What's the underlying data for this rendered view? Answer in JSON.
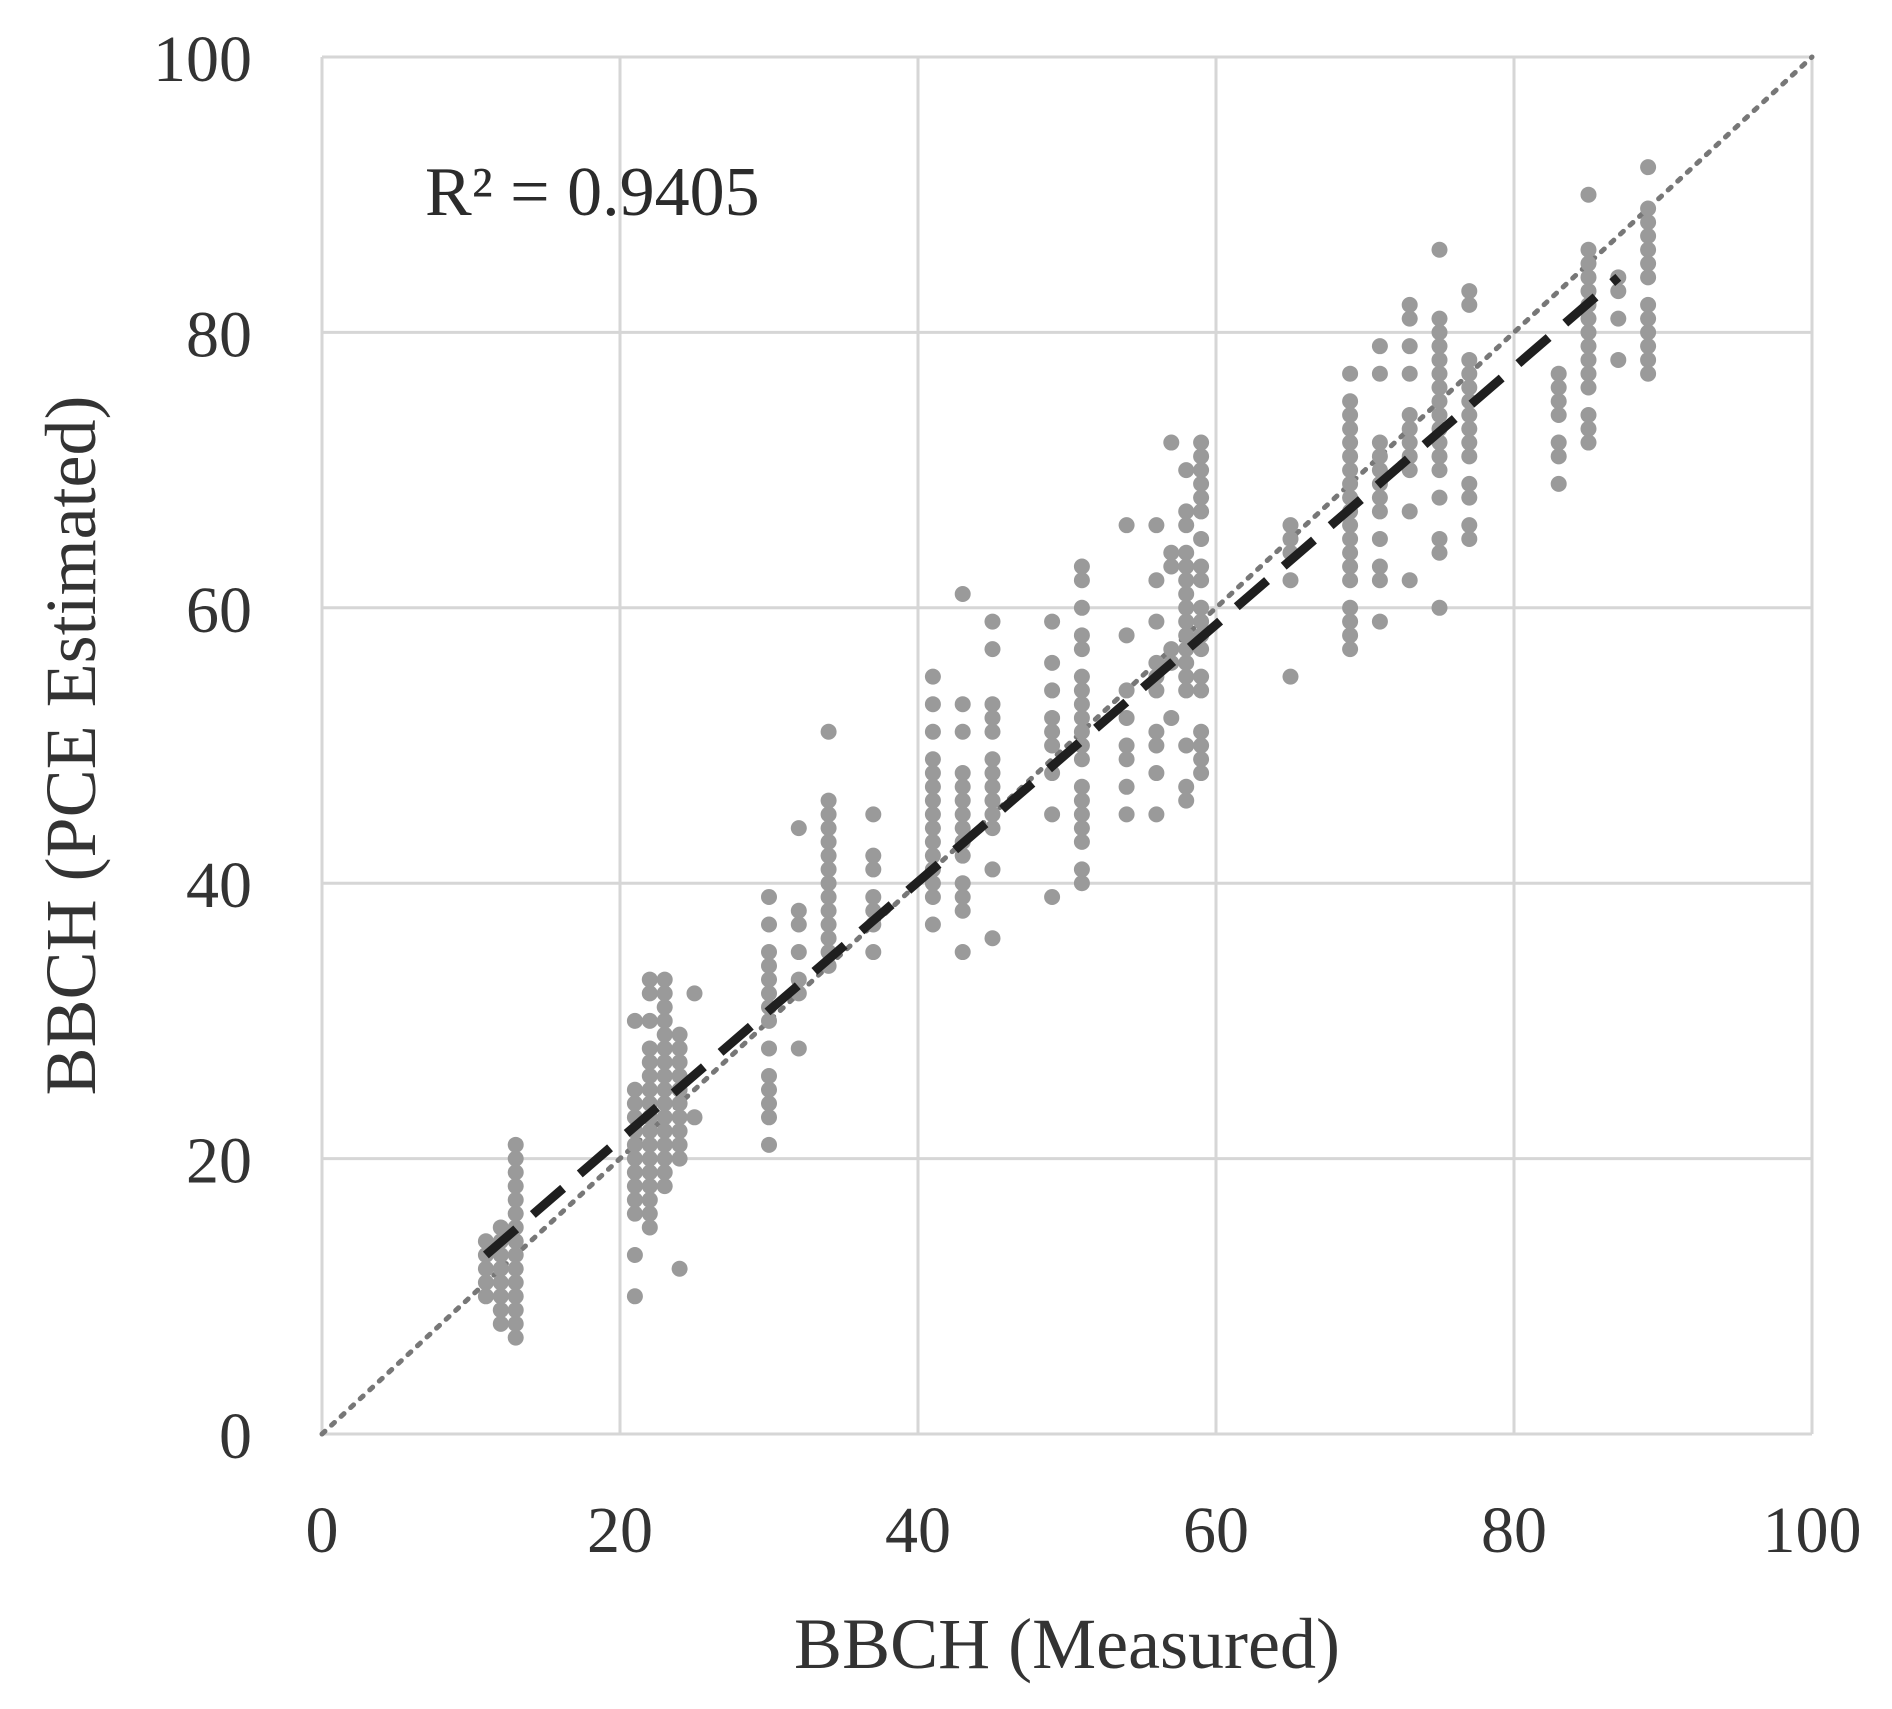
{
  "chart_data": {
    "type": "scatter",
    "xlabel": "BBCH (Measured)",
    "ylabel": "BBCH (PCE Estimated)",
    "xlim": [
      0,
      100
    ],
    "ylim": [
      0,
      100
    ],
    "xticks": [
      "0",
      "20",
      "40",
      "60",
      "80",
      "100"
    ],
    "yticks": [
      "0",
      "20",
      "40",
      "60",
      "80",
      "100"
    ],
    "grid": true,
    "annotation": "R² = 0.9405",
    "trendline": {
      "x": [
        11,
        87
      ],
      "y": [
        13,
        84
      ],
      "style": "dashed"
    },
    "reference_line": {
      "x": [
        0,
        100
      ],
      "y": [
        0,
        100
      ],
      "style": "dotted"
    },
    "columns": [
      {
        "x": 11,
        "y": [
          10,
          11,
          12,
          13,
          14
        ]
      },
      {
        "x": 12,
        "y": [
          8,
          9,
          10,
          11,
          12,
          13,
          14,
          15
        ]
      },
      {
        "x": 13,
        "y": [
          7,
          8,
          9,
          10,
          11,
          12,
          13,
          14,
          15,
          16,
          17,
          18,
          19,
          20,
          21
        ]
      },
      {
        "x": 21,
        "y": [
          10,
          13,
          16,
          17,
          18,
          19,
          20,
          21,
          22,
          23,
          24,
          25,
          30
        ]
      },
      {
        "x": 22,
        "y": [
          15,
          16,
          17,
          18,
          19,
          20,
          21,
          22,
          23,
          24,
          25,
          26,
          27,
          28,
          30,
          32,
          33
        ]
      },
      {
        "x": 23,
        "y": [
          18,
          19,
          20,
          21,
          22,
          23,
          24,
          25,
          26,
          27,
          28,
          29,
          30,
          31,
          32,
          33
        ]
      },
      {
        "x": 24,
        "y": [
          12,
          20,
          21,
          22,
          23,
          24,
          25,
          26,
          27,
          28,
          29
        ]
      },
      {
        "x": 25,
        "y": [
          23,
          32
        ]
      },
      {
        "x": 30,
        "y": [
          21,
          23,
          24,
          25,
          26,
          28,
          30,
          31,
          32,
          33,
          34,
          35,
          37,
          39
        ]
      },
      {
        "x": 32,
        "y": [
          28,
          32,
          33,
          35,
          37,
          38,
          44
        ]
      },
      {
        "x": 34,
        "y": [
          34,
          35,
          36,
          37,
          38,
          39,
          40,
          41,
          42,
          43,
          44,
          45,
          46,
          51
        ]
      },
      {
        "x": 37,
        "y": [
          35,
          37,
          38,
          39,
          41,
          42,
          45
        ]
      },
      {
        "x": 41,
        "y": [
          37,
          39,
          40,
          41,
          42,
          43,
          44,
          45,
          46,
          47,
          48,
          49,
          51,
          53,
          55
        ]
      },
      {
        "x": 43,
        "y": [
          35,
          38,
          39,
          40,
          42,
          43,
          44,
          45,
          46,
          47,
          48,
          51,
          53,
          61
        ]
      },
      {
        "x": 45,
        "y": [
          36,
          41,
          44,
          45,
          46,
          47,
          48,
          49,
          51,
          52,
          53,
          57,
          59
        ]
      },
      {
        "x": 49,
        "y": [
          39,
          45,
          48,
          50,
          51,
          52,
          54,
          56,
          59
        ]
      },
      {
        "x": 51,
        "y": [
          40,
          41,
          43,
          44,
          45,
          46,
          47,
          49,
          50,
          51,
          52,
          53,
          54,
          55,
          57,
          58,
          60,
          62,
          63
        ]
      },
      {
        "x": 54,
        "y": [
          45,
          47,
          49,
          50,
          52,
          54,
          58,
          66
        ]
      },
      {
        "x": 56,
        "y": [
          45,
          48,
          50,
          51,
          54,
          55,
          56,
          59,
          62,
          66
        ]
      },
      {
        "x": 57,
        "y": [
          52,
          56,
          57,
          63,
          64,
          72
        ]
      },
      {
        "x": 58,
        "y": [
          46,
          47,
          50,
          54,
          55,
          56,
          57,
          58,
          59,
          60,
          61,
          62,
          63,
          64,
          66,
          67,
          70
        ]
      },
      {
        "x": 59,
        "y": [
          48,
          49,
          50,
          51,
          54,
          55,
          57,
          58,
          59,
          60,
          62,
          63,
          65,
          67,
          68,
          69,
          70,
          71,
          72
        ]
      },
      {
        "x": 65,
        "y": [
          55,
          62,
          64,
          65,
          66
        ]
      },
      {
        "x": 69,
        "y": [
          57,
          58,
          59,
          60,
          62,
          63,
          64,
          65,
          66,
          67,
          68,
          69,
          70,
          71,
          72,
          73,
          74,
          75,
          77
        ]
      },
      {
        "x": 71,
        "y": [
          59,
          62,
          63,
          65,
          67,
          68,
          69,
          70,
          71,
          72,
          77,
          79
        ]
      },
      {
        "x": 73,
        "y": [
          62,
          67,
          70,
          71,
          72,
          73,
          74,
          77,
          79,
          81,
          82
        ]
      },
      {
        "x": 75,
        "y": [
          60,
          64,
          65,
          68,
          70,
          71,
          72,
          73,
          74,
          75,
          76,
          77,
          78,
          79,
          80,
          81,
          86
        ]
      },
      {
        "x": 77,
        "y": [
          65,
          66,
          68,
          69,
          71,
          72,
          73,
          74,
          75,
          76,
          77,
          78,
          82,
          83
        ]
      },
      {
        "x": 83,
        "y": [
          69,
          71,
          72,
          74,
          75,
          76,
          77
        ]
      },
      {
        "x": 85,
        "y": [
          72,
          73,
          74,
          76,
          77,
          78,
          79,
          80,
          81,
          82,
          83,
          84,
          85,
          86,
          90
        ]
      },
      {
        "x": 87,
        "y": [
          78,
          81,
          83,
          84
        ]
      },
      {
        "x": 89,
        "y": [
          77,
          78,
          79,
          80,
          81,
          82,
          84,
          85,
          86,
          87,
          88,
          89,
          92
        ]
      }
    ]
  }
}
